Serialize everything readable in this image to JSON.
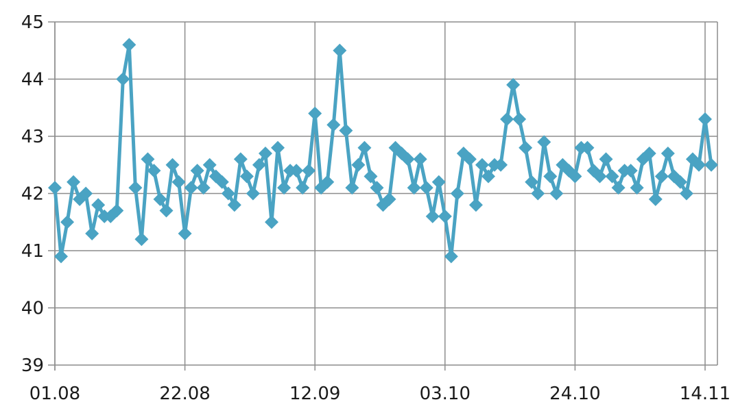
{
  "chart_data": {
    "type": "line",
    "title": "",
    "xlabel": "",
    "ylabel": "",
    "ylim": [
      39,
      45
    ],
    "yticks": [
      "39",
      "40",
      "41",
      "42",
      "43",
      "44",
      "45"
    ],
    "xtick_labels": [
      "01.08",
      "22.08",
      "12.09",
      "03.10",
      "24.10",
      "14.11"
    ],
    "xtick_indices": [
      0,
      21,
      42,
      63,
      84,
      105
    ],
    "marker": "diamond",
    "grid": true,
    "color": "#4aa3c3",
    "series": [
      {
        "values": [
          42.1,
          40.9,
          41.5,
          42.2,
          41.9,
          42.0,
          41.3,
          41.8,
          41.6,
          41.6,
          41.7,
          44.0,
          44.6,
          42.1,
          41.2,
          42.6,
          42.4,
          41.9,
          41.7,
          42.5,
          42.2,
          41.3,
          42.1,
          42.4,
          42.1,
          42.5,
          42.3,
          42.2,
          42.0,
          41.8,
          42.6,
          42.3,
          42.0,
          42.5,
          42.7,
          41.5,
          42.8,
          42.1,
          42.4,
          42.4,
          42.1,
          42.4,
          43.4,
          42.1,
          42.2,
          43.2,
          44.5,
          43.1,
          42.1,
          42.5,
          42.8,
          42.3,
          42.1,
          41.8,
          41.9,
          42.8,
          42.7,
          42.6,
          42.1,
          42.6,
          42.1,
          41.6,
          42.2,
          41.6,
          40.9,
          42.0,
          42.7,
          42.6,
          41.8,
          42.5,
          42.3,
          42.5,
          42.5,
          43.3,
          43.9,
          43.3,
          42.8,
          42.2,
          42.0,
          42.9,
          42.3,
          42.0,
          42.5,
          42.4,
          42.3,
          42.8,
          42.8,
          42.4,
          42.3,
          42.6,
          42.3,
          42.1,
          42.4,
          42.4,
          42.1,
          42.6,
          42.7,
          41.9,
          42.3,
          42.7,
          42.3,
          42.2,
          42.0,
          42.6,
          42.5,
          43.3,
          42.5
        ]
      }
    ]
  }
}
